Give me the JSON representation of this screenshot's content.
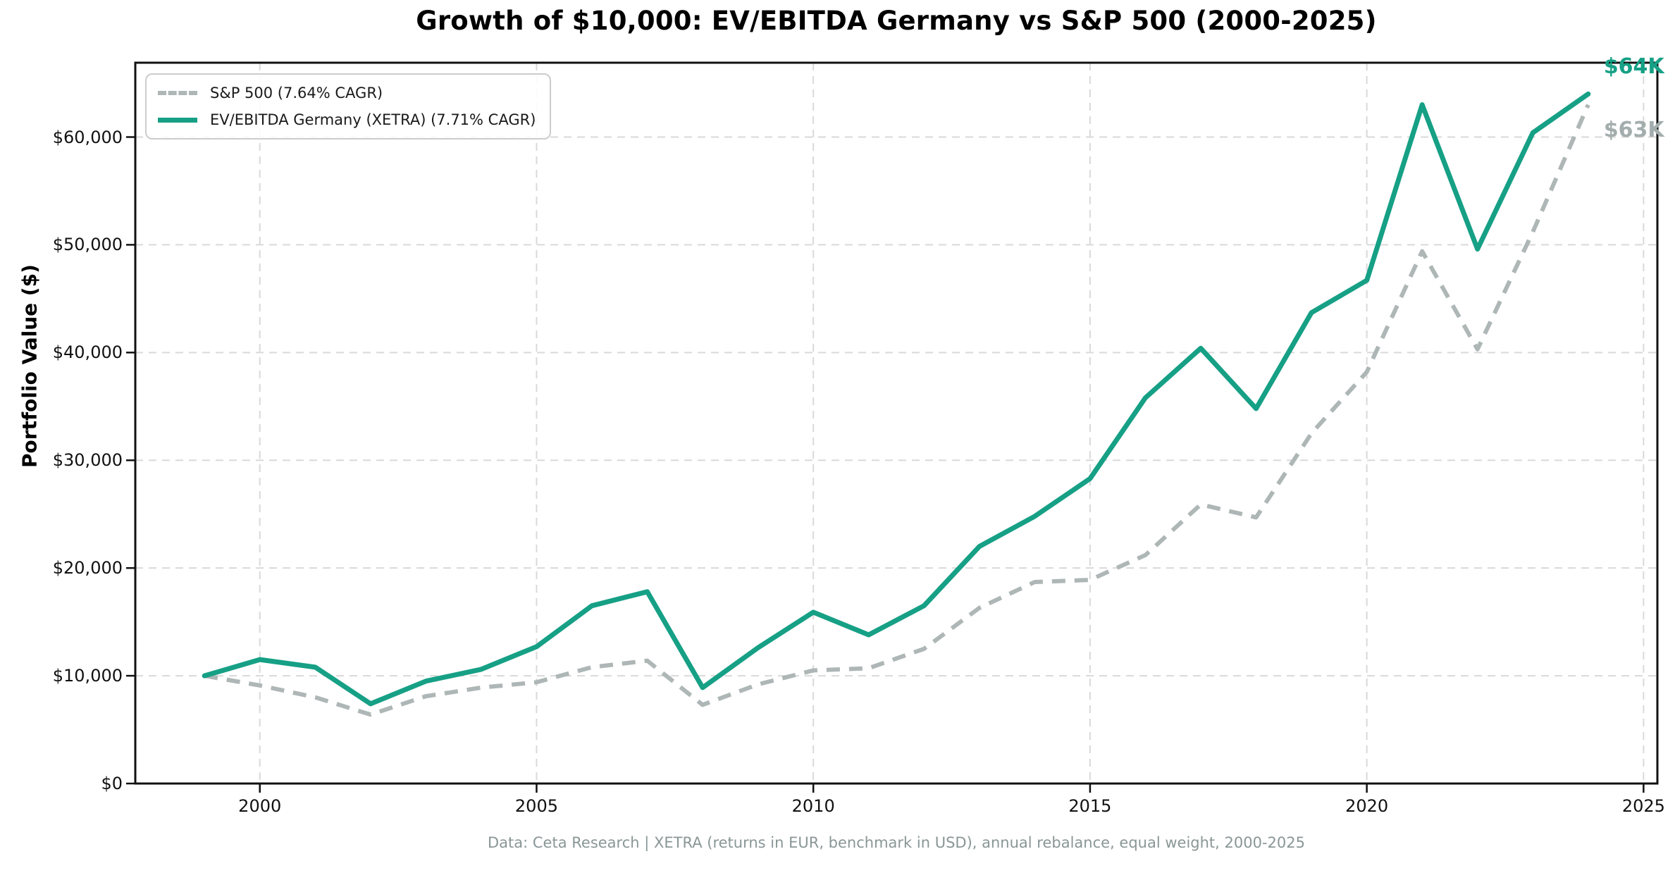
{
  "title": "Growth of $10,000: EV/EBITDA Germany vs S&P 500 (2000-2025)",
  "y_axis_label": "Portfolio Value ($)",
  "footer": "Data: Ceta Research | XETRA (returns in EUR, benchmark in USD), annual rebalance, equal weight, 2000-2025",
  "legend": {
    "items": [
      {
        "label": "S&P 500 (7.64% CAGR)"
      },
      {
        "label": "EV/EBITDA Germany (XETRA) (7.71% CAGR)"
      }
    ]
  },
  "chart_data": {
    "type": "line",
    "title": "Growth of $10,000: EV/EBITDA Germany vs S&P 500 (2000-2025)",
    "xlabel": "",
    "ylabel": "Portfolio Value ($)",
    "grid": true,
    "legend_position": "upper left",
    "xlim": [
      1997.75,
      2025.25
    ],
    "ylim": [
      0,
      66900
    ],
    "x": [
      1999,
      2000,
      2001,
      2002,
      2003,
      2004,
      2005,
      2006,
      2007,
      2008,
      2009,
      2010,
      2011,
      2012,
      2013,
      2014,
      2015,
      2016,
      2017,
      2018,
      2019,
      2020,
      2021,
      2022,
      2023,
      2024
    ],
    "x_ticks": [
      {
        "v": 2000,
        "label": "2000"
      },
      {
        "v": 2005,
        "label": "2005"
      },
      {
        "v": 2010,
        "label": "2010"
      },
      {
        "v": 2015,
        "label": "2015"
      },
      {
        "v": 2020,
        "label": "2020"
      },
      {
        "v": 2025,
        "label": "2025"
      }
    ],
    "y_ticks": [
      {
        "v": 0,
        "label": "$0"
      },
      {
        "v": 10000,
        "label": "$10,000"
      },
      {
        "v": 20000,
        "label": "$20,000"
      },
      {
        "v": 30000,
        "label": "$30,000"
      },
      {
        "v": 40000,
        "label": "$40,000"
      },
      {
        "v": 50000,
        "label": "$50,000"
      },
      {
        "v": 60000,
        "label": "$60,000"
      }
    ],
    "series": [
      {
        "name": "S&P 500",
        "legend_label": "S&P 500 (7.64% CAGR)",
        "cagr": "7.64%",
        "color": "#aeb6b6",
        "end_label_color": "#a3adad",
        "dashed": true,
        "end_label": "$63K",
        "values": [
          10000,
          9100,
          8000,
          6400,
          8100,
          8900,
          9400,
          10800,
          11400,
          7300,
          9200,
          10500,
          10700,
          12500,
          16300,
          18700,
          18900,
          21200,
          25900,
          24700,
          32500,
          38200,
          49400,
          40300,
          51200,
          63000
        ]
      },
      {
        "name": "EV/EBITDA Germany (XETRA)",
        "legend_label": "EV/EBITDA Germany (XETRA) (7.71% CAGR)",
        "cagr": "7.71%",
        "color": "#16a085",
        "end_label_color": "#16a085",
        "dashed": false,
        "end_label": "$64K",
        "values": [
          10000,
          11500,
          10800,
          7400,
          9500,
          10600,
          12700,
          16500,
          17800,
          8900,
          12600,
          15900,
          13800,
          16500,
          22000,
          24800,
          28300,
          35800,
          40400,
          34800,
          43700,
          46700,
          63000,
          49600,
          60400,
          64000
        ]
      }
    ]
  }
}
